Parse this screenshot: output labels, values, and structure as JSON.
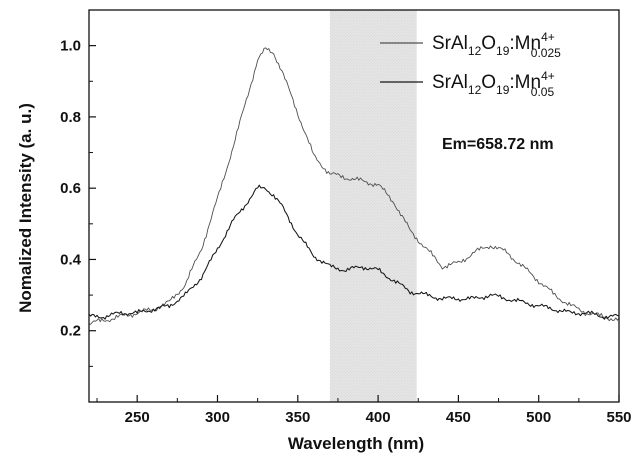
{
  "chart_data": {
    "type": "line",
    "xlabel": "Wavelength (nm)",
    "ylabel": "Nomalized Intensity (a. u.)",
    "xlim": [
      220,
      550
    ],
    "ylim": [
      0,
      1.1
    ],
    "x_ticks": [
      250,
      300,
      350,
      400,
      450,
      500,
      550
    ],
    "y_ticks": [
      0.2,
      0.4,
      0.6,
      0.8,
      1.0
    ],
    "x_tick_labels": [
      "250",
      "300",
      "350",
      "400",
      "450",
      "500",
      "550"
    ],
    "y_tick_labels": [
      "0.2",
      "0.4",
      "0.6",
      "0.8",
      "1.0"
    ],
    "annotation": "Em=658.72 nm",
    "shaded_region": {
      "x_range": [
        370,
        424
      ]
    },
    "legend": {
      "position": "top-right",
      "entries": [
        {
          "base": "SrAl",
          "sub1": "12",
          "mid1": "O",
          "sub2": "19",
          "mid2": ":Mn",
          "sup": "4+",
          "sub3": "0.025"
        },
        {
          "base": "SrAl",
          "sub1": "12",
          "mid1": "O",
          "sub2": "19",
          "mid2": ":Mn",
          "sup": "4+",
          "sub3": "0.05"
        }
      ]
    },
    "series": [
      {
        "x": [
          220,
          230,
          240,
          250,
          260,
          270,
          280,
          290,
          300,
          310,
          320,
          325,
          330,
          335,
          340,
          350,
          360,
          370,
          380,
          390,
          400,
          410,
          420,
          430,
          440,
          450,
          460,
          470,
          480,
          490,
          500,
          510,
          520,
          530,
          540,
          550
        ],
        "y": [
          0.22,
          0.23,
          0.24,
          0.25,
          0.26,
          0.28,
          0.33,
          0.43,
          0.57,
          0.72,
          0.88,
          0.96,
          0.99,
          0.98,
          0.93,
          0.81,
          0.69,
          0.64,
          0.63,
          0.62,
          0.61,
          0.56,
          0.48,
          0.43,
          0.38,
          0.39,
          0.42,
          0.44,
          0.42,
          0.38,
          0.34,
          0.3,
          0.27,
          0.25,
          0.24,
          0.23
        ]
      },
      {
        "x": [
          220,
          230,
          240,
          250,
          260,
          270,
          280,
          290,
          300,
          310,
          320,
          325,
          330,
          335,
          340,
          350,
          360,
          370,
          380,
          390,
          400,
          410,
          420,
          430,
          440,
          450,
          460,
          470,
          480,
          490,
          500,
          510,
          520,
          530,
          540,
          550
        ],
        "y": [
          0.24,
          0.24,
          0.25,
          0.25,
          0.26,
          0.27,
          0.3,
          0.35,
          0.43,
          0.51,
          0.57,
          0.6,
          0.6,
          0.58,
          0.55,
          0.47,
          0.41,
          0.38,
          0.37,
          0.38,
          0.37,
          0.34,
          0.31,
          0.3,
          0.29,
          0.29,
          0.29,
          0.3,
          0.29,
          0.28,
          0.27,
          0.26,
          0.25,
          0.25,
          0.24,
          0.24
        ]
      }
    ]
  }
}
